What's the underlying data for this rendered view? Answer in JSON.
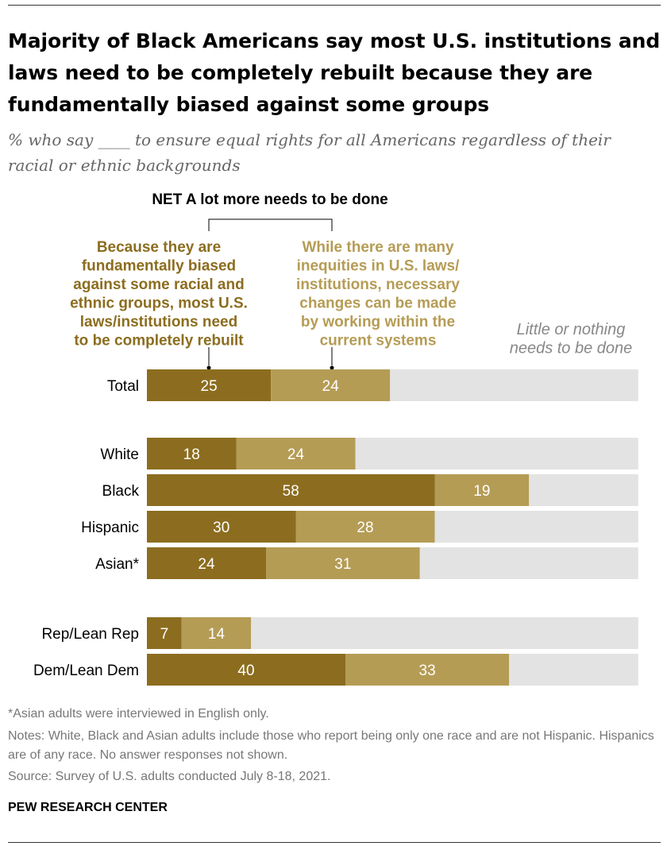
{
  "header": {
    "title": "Majority of Black Americans say most U.S. institutions and laws need to be completely rebuilt because they are fundamentally biased against some groups",
    "subtitle": "% who say ____ to ensure equal rights for all Americans regardless of their racial or ethnic backgrounds"
  },
  "chart_data": {
    "type": "bar",
    "orientation": "horizontal",
    "stacked": true,
    "title": "Majority of Black Americans say most U.S. institutions and laws need to be completely rebuilt because they are fundamentally biased against some groups",
    "subtitle": "% who say ____ to ensure equal rights for all Americans regardless of their racial or ethnic backgrounds",
    "group_label": "NET A lot more needs to be done",
    "categories": [
      "Total",
      "White",
      "Black",
      "Hispanic",
      "Asian*",
      "Rep/Lean Rep",
      "Dem/Lean Dem"
    ],
    "series": [
      {
        "name": [
          "Because they are",
          "fundamentally biased",
          "against some racial and",
          "ethnic groups, most U.S.",
          "laws/institutions need",
          "to be completely rebuilt"
        ],
        "color": "#8C6D1F",
        "values": [
          25,
          18,
          58,
          30,
          24,
          7,
          40
        ]
      },
      {
        "name": [
          "While there are many",
          "inequities in U.S. laws/",
          "institutions, necessary",
          "changes can be made",
          "by working within the",
          "current systems"
        ],
        "color": "#B59C55",
        "values": [
          24,
          24,
          19,
          28,
          31,
          14,
          33
        ]
      },
      {
        "name": [
          "Little or nothing",
          "needs to be done"
        ],
        "color": "#E3E3E3",
        "values": [
          50,
          57,
          22,
          41,
          44,
          78,
          26
        ]
      }
    ],
    "xlim": [
      0,
      100
    ],
    "grid": false,
    "legend": "annotations above bars"
  },
  "footer": {
    "asterisk_note": "*Asian adults were interviewed in English only.",
    "notes": "Notes: White, Black and Asian adults include those who report being only one race and are not Hispanic. Hispanics are of any race. No answer responses not shown.",
    "source": "Source: Survey of U.S. adults conducted July 8-18, 2021.",
    "org": "PEW RESEARCH CENTER"
  }
}
